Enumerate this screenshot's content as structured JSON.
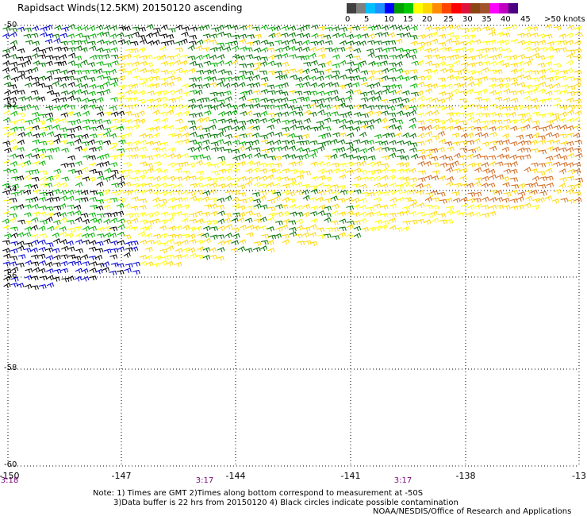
{
  "title": "Rapidsact Winds(12.5KM) 20150120 ascending",
  "colorbar": {
    "colors": [
      "#404040",
      "#7f7f7f",
      "#00bfff",
      "#1e90ff",
      "#0000ff",
      "#00a000",
      "#00c800",
      "#ffff00",
      "#ffd700",
      "#ff8c00",
      "#ff4500",
      "#ff0000",
      "#dc143c",
      "#8b4513",
      "#a0522d",
      "#ff00ff",
      "#c000c0",
      "#4b0082"
    ],
    "labels": [
      "0",
      "5",
      "10",
      "15",
      "20",
      "25",
      "30",
      "35",
      "40",
      "45",
      ">50 knots"
    ]
  },
  "axes": {
    "lat_labels": [
      "-50",
      "-52",
      "-54",
      "-56",
      "-58",
      "-60"
    ],
    "lon_labels": [
      "-150",
      "-147",
      "-144",
      "-141",
      "-138",
      "-13"
    ]
  },
  "times": [
    "3:18",
    "3:17",
    "3:17"
  ],
  "notes": [
    "Note: 1) Times are GMT 2)Times along bottom correspond to measurement at -50S",
    "3)Data buffer is 22 hrs from 20150120 4) Black circles indicate possible contamination",
    "NOAA/NESDIS/Office of Research and Applications"
  ],
  "wind_colors": {
    "black": "#000000",
    "blue": "#0000d0",
    "green": "#00b000",
    "dark_green": "#007000",
    "yellow": "#ffff00",
    "gold": "#ffd700",
    "orange": "#d2691e"
  }
}
